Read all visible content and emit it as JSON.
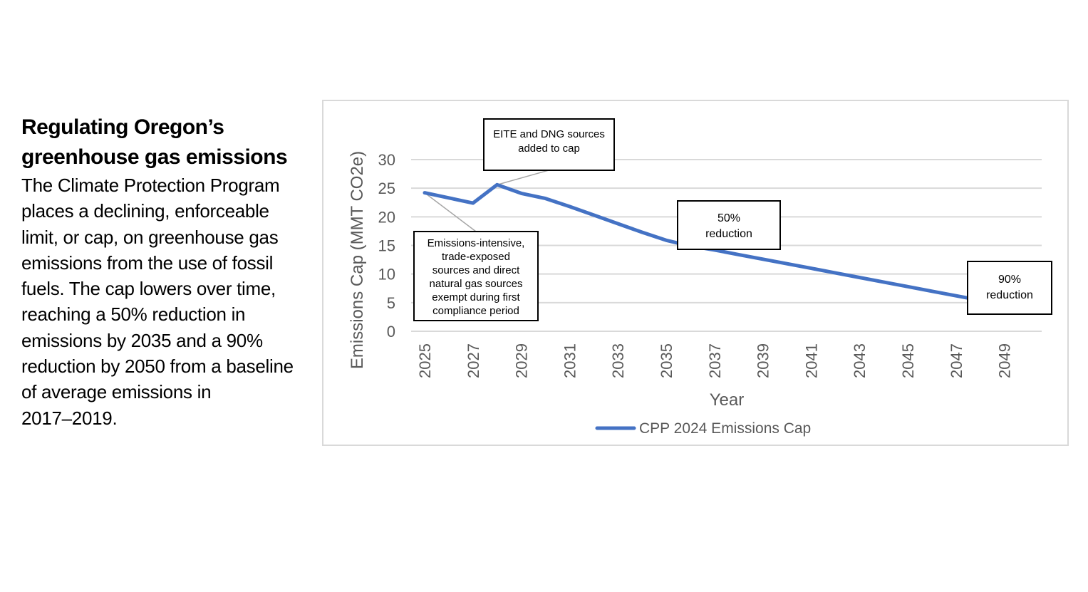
{
  "sidebar": {
    "heading_line1": "Regulating Oregon’s",
    "heading_line2": "greenhouse gas emissions",
    "body_lines": [
      "The Climate Protection Program",
      "places a declining, enforceable",
      "limit, or cap, on greenhouse gas",
      "emissions from the use of fossil",
      "fuels. The cap lowers over time,",
      "reaching a 50% reduction in",
      "emissions by 2035 and a 90%",
      "reduction by 2050 from a baseline",
      "of average emissions in",
      "2017–2019."
    ]
  },
  "chart_data": {
    "type": "line",
    "title": "",
    "xlabel": "Year",
    "ylabel": "Emissions Cap (MMT CO2e)",
    "xlim": [
      2025,
      2050
    ],
    "ylim": [
      0,
      30
    ],
    "y_ticks": [
      "0",
      "5",
      "10",
      "15",
      "20",
      "25",
      "30"
    ],
    "x_ticks": [
      "2025",
      "2027",
      "2029",
      "2031",
      "2033",
      "2035",
      "2037",
      "2039",
      "2041",
      "2043",
      "2045",
      "2047",
      "2049"
    ],
    "grid": true,
    "legend_position": "bottom",
    "series": [
      {
        "name": "CPP 2024 Emissions Cap",
        "color": "#4472c4",
        "x": [
          2025,
          2026,
          2027,
          2028,
          2029,
          2030,
          2031,
          2032,
          2033,
          2034,
          2035,
          2036,
          2037,
          2038,
          2039,
          2040,
          2041,
          2042,
          2043,
          2044,
          2045,
          2046,
          2047,
          2048,
          2049,
          2050
        ],
        "values": [
          24.2,
          23.3,
          22.4,
          25.6,
          24.1,
          23.2,
          21.8,
          20.3,
          18.8,
          17.3,
          15.9,
          14.9,
          14.2,
          13.4,
          12.6,
          11.8,
          11.0,
          10.2,
          9.4,
          8.6,
          7.8,
          7.0,
          6.2,
          5.4,
          4.7,
          4.0
        ]
      }
    ],
    "annotations": [
      {
        "id": "eite",
        "lines": [
          "EITE and DNG sources",
          "added to cap"
        ]
      },
      {
        "id": "exempt",
        "lines": [
          "Emissions-intensive,",
          "trade-exposed",
          "sources and direct",
          "natural gas sources",
          "exempt during first",
          "compliance period"
        ]
      },
      {
        "id": "fifty",
        "lines": [
          "50%",
          "reduction"
        ]
      },
      {
        "id": "ninety",
        "lines": [
          "90%",
          "reduction"
        ]
      }
    ]
  }
}
